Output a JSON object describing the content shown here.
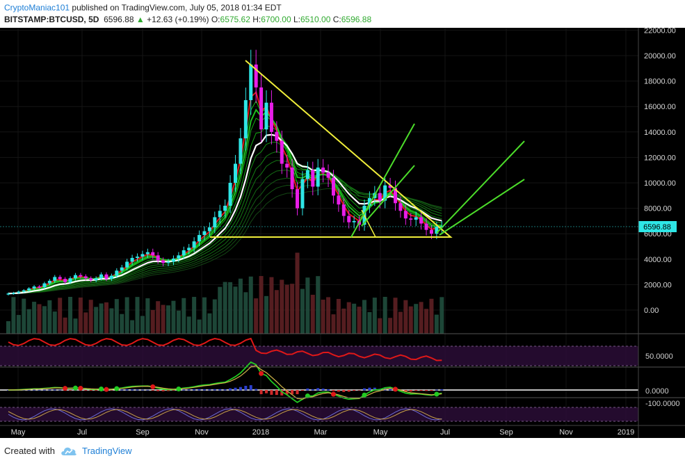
{
  "header": {
    "author": "CryptoManiac101",
    "published": "published on TradingView.com, July 05, 2018 01:34 EDT",
    "symbol": "BITSTAMP:BTCUSD, 5D",
    "price": "6596.88",
    "change": "+12.63 (+0.19%)",
    "o_label": "O:",
    "o_value": "6575.62",
    "h_label": "H:",
    "h_value": "6700.00",
    "l_label": "L:",
    "l_value": "6510.00",
    "c_label": "C:",
    "c_value": "6596.88"
  },
  "footer": {
    "created_with": "Created with",
    "brand": "TradingView"
  },
  "colors": {
    "background": "#000000",
    "bull": "#2ee6e6",
    "bear": "#e81ee8",
    "pattern_lines": "#f0ee3a",
    "fan_lines": "#4cdd2a",
    "ema_fast": "#e01818",
    "ema_mid": "#1fbf1f",
    "ema_slow": "#ffffff",
    "last_price_tag": "#2ee6e6"
  },
  "chart_data": {
    "type": "candlestick",
    "symbol": "BITSTAMP:BTCUSD",
    "interval": "5D",
    "price_axis": {
      "ticks": [
        0,
        2000,
        4000,
        6000,
        8000,
        10000,
        12000,
        14000,
        16000,
        18000,
        20000,
        22000
      ],
      "tick_labels": [
        "0.00",
        "2000.00",
        "4000.00",
        "6000.00",
        "8000.00",
        "10000.00",
        "12000.00",
        "14000.00",
        "16000.00",
        "18000.00",
        "20000.00",
        "22000.00"
      ],
      "last_price_label": "6596.88"
    },
    "time_axis": {
      "labels": [
        "May",
        "Jul",
        "Sep",
        "Nov",
        "2018",
        "Mar",
        "May",
        "Jul",
        "Sep",
        "Nov",
        "2019"
      ]
    },
    "closes": [
      1300,
      1350,
      1450,
      1550,
      1700,
      1850,
      1800,
      2100,
      2300,
      2600,
      2450,
      2200,
      2500,
      2750,
      2650,
      2500,
      2350,
      2500,
      2800,
      2450,
      2700,
      3100,
      3350,
      3800,
      4100,
      4200,
      4400,
      4550,
      4300,
      3900,
      3700,
      3800,
      4050,
      4300,
      4700,
      4900,
      5400,
      5900,
      6200,
      6500,
      7300,
      7800,
      8200,
      10000,
      11500,
      13500,
      16500,
      19300,
      17500,
      14200,
      16300,
      14000,
      13300,
      11500,
      11200,
      9500,
      8000,
      10300,
      11000,
      9700,
      11200,
      10800,
      10400,
      9000,
      8300,
      7400,
      6900,
      7000,
      6700,
      8200,
      8800,
      9200,
      8600,
      9800,
      9600,
      8400,
      7800,
      7200,
      7100,
      7300,
      6800,
      6300,
      6000,
      6550,
      6597
    ],
    "pattern": {
      "type": "descending triangle",
      "apex_price": 19600,
      "support_price": 5800
    },
    "oscillator_labels": [
      "50.0000",
      "0.0000",
      "-100.0000"
    ]
  }
}
